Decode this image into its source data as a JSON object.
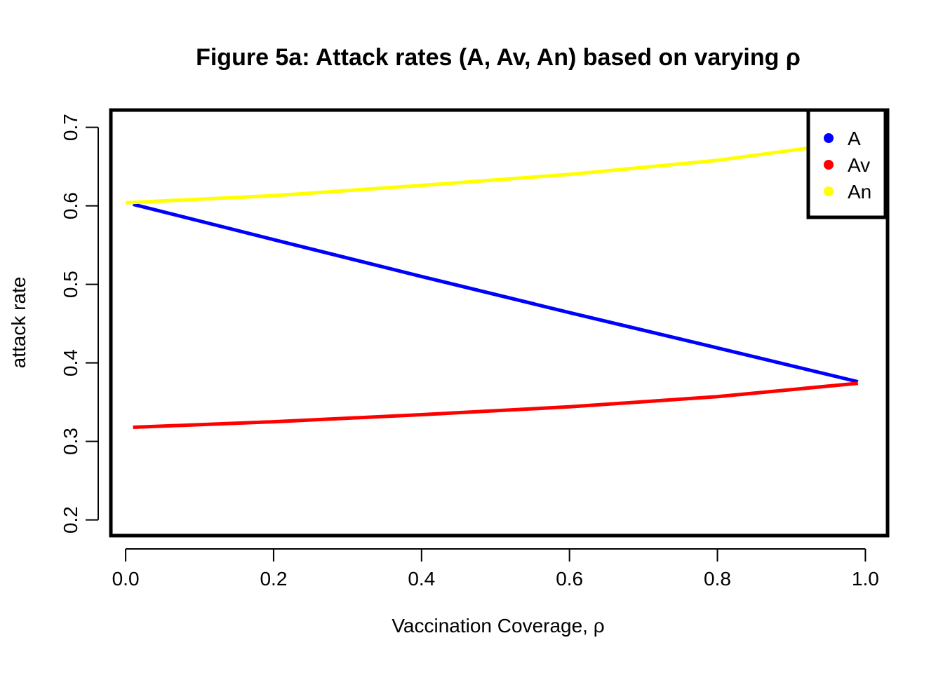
{
  "chart_data": {
    "type": "line",
    "title": "Figure 5a: Attack rates (A, Av, An) based on varying ρ",
    "xlabel": "Vaccination Coverage,  ρ",
    "ylabel": "attack rate",
    "xlim": [
      -0.02,
      1.03
    ],
    "ylim": [
      0.18,
      0.722
    ],
    "xticks": [
      0.0,
      0.2,
      0.4,
      0.6,
      0.8,
      1.0
    ],
    "xtick_labels": [
      "0.0",
      "0.2",
      "0.4",
      "0.6",
      "0.8",
      "1.0"
    ],
    "yticks": [
      0.2,
      0.3,
      0.4,
      0.5,
      0.6,
      0.7
    ],
    "ytick_labels": [
      "0.2",
      "0.3",
      "0.4",
      "0.5",
      "0.6",
      "0.7"
    ],
    "grid": false,
    "legend_position": "top-right",
    "series": [
      {
        "name": "A",
        "color": "#0000ff",
        "x": [
          0.01,
          0.2,
          0.4,
          0.6,
          0.8,
          0.99
        ],
        "y": [
          0.602,
          0.557,
          0.51,
          0.464,
          0.419,
          0.376
        ]
      },
      {
        "name": "Av",
        "color": "#ff0000",
        "x": [
          0.01,
          0.2,
          0.4,
          0.6,
          0.8,
          0.99
        ],
        "y": [
          0.318,
          0.325,
          0.334,
          0.344,
          0.357,
          0.374
        ]
      },
      {
        "name": "An",
        "color": "#ffff00",
        "x": [
          0.0,
          0.2,
          0.4,
          0.6,
          0.8,
          0.99
        ],
        "y": [
          0.604,
          0.613,
          0.626,
          0.64,
          0.658,
          0.682
        ]
      }
    ]
  }
}
